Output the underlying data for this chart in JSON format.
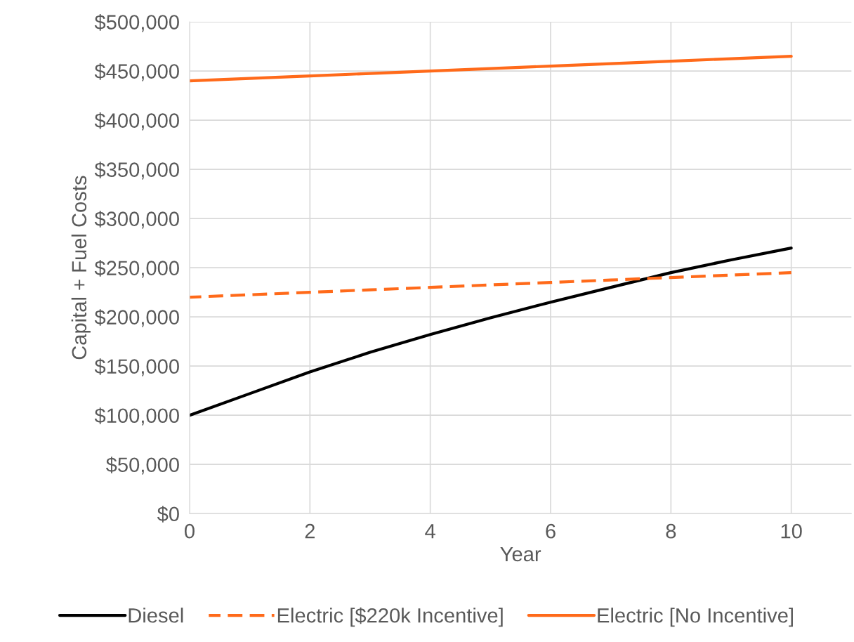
{
  "chart_data": {
    "type": "line",
    "xlabel": "Year",
    "ylabel": "Capital + Fuel Costs",
    "x": [
      0,
      1,
      2,
      3,
      4,
      5,
      6,
      7,
      8,
      9,
      10
    ],
    "series": [
      {
        "name": "Diesel",
        "color": "#000000",
        "line_style": "solid",
        "values": [
          100000,
          122000,
          144000,
          164000,
          182000,
          199000,
          215000,
          230000,
          245000,
          258000,
          270000
        ]
      },
      {
        "name": "Electric [$220k Incentive]",
        "color": "#ff6a1a",
        "line_style": "dashed",
        "values": [
          220000,
          222500,
          225000,
          227500,
          230000,
          232500,
          235000,
          237500,
          240000,
          242500,
          245000
        ]
      },
      {
        "name": "Electric [No Incentive]",
        "color": "#ff6a1a",
        "line_style": "solid",
        "values": [
          440000,
          442500,
          445000,
          447500,
          450000,
          452500,
          455000,
          457500,
          460000,
          462500,
          465000
        ]
      }
    ],
    "xlim": [
      0,
      11
    ],
    "xticks": [
      0,
      2,
      4,
      6,
      8,
      10
    ],
    "ylim": [
      0,
      500000
    ],
    "yticks": [
      {
        "value": 0,
        "label": "$0"
      },
      {
        "value": 50000,
        "label": "$50,000"
      },
      {
        "value": 100000,
        "label": "$100,000"
      },
      {
        "value": 150000,
        "label": "$150,000"
      },
      {
        "value": 200000,
        "label": "$200,000"
      },
      {
        "value": 250000,
        "label": "$250,000"
      },
      {
        "value": 300000,
        "label": "$300,000"
      },
      {
        "value": 350000,
        "label": "$350,000"
      },
      {
        "value": 400000,
        "label": "$400,000"
      },
      {
        "value": 450000,
        "label": "$450,000"
      },
      {
        "value": 500000,
        "label": "$500,000"
      }
    ],
    "grid": true,
    "legend": "bottom"
  }
}
